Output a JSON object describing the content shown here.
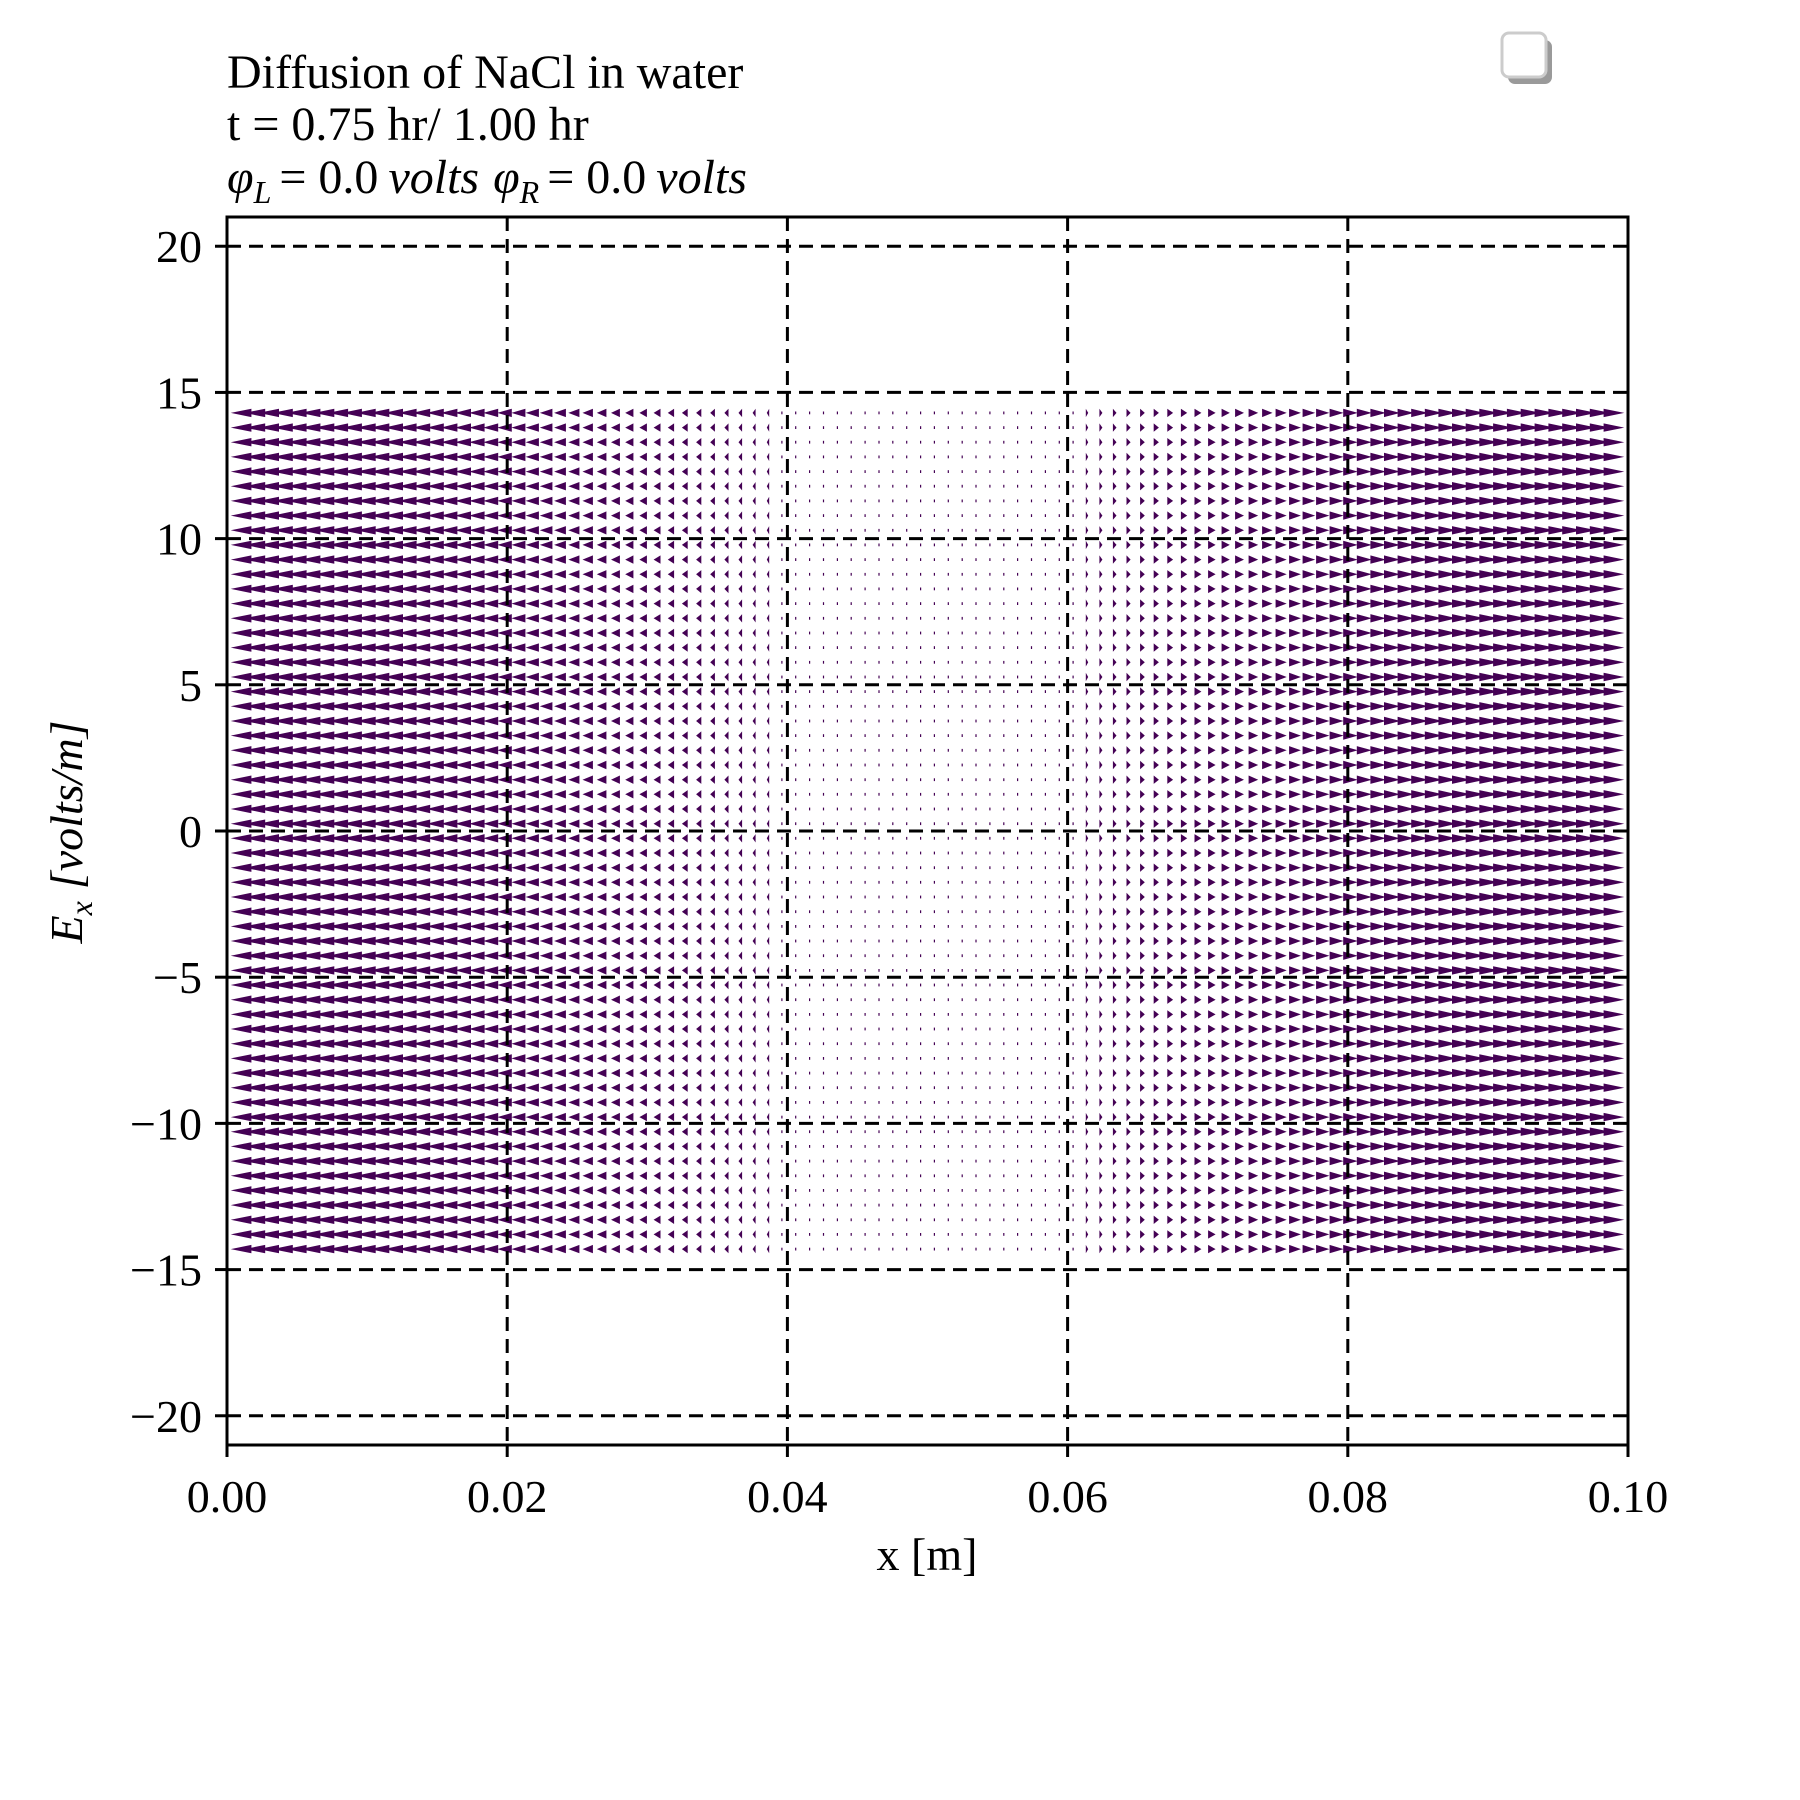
{
  "chart_data": {
    "type": "quiver",
    "title_lines": [
      "Diffusion of NaCl in water",
      "t = 0.75 hr/ 1.00 hr"
    ],
    "potential_line": {
      "left_symbol": "φ",
      "left_sub": "L",
      "left_value": "= 0.0",
      "left_unit": "volts",
      "right_symbol": "φ",
      "right_sub": "R",
      "right_value": "= 0.0",
      "right_unit": "volts"
    },
    "xlabel": "x [m]",
    "ylabel": {
      "symbol": "E",
      "sub": "x",
      "unit": "[volts/m]"
    },
    "xlim": [
      0.0,
      0.1
    ],
    "ylim": [
      -21,
      21
    ],
    "x_ticks": [
      0.0,
      0.02,
      0.04,
      0.06,
      0.08,
      0.1
    ],
    "x_tick_labels": [
      "0.00",
      "0.02",
      "0.04",
      "0.06",
      "0.08",
      "0.10"
    ],
    "y_ticks": [
      20,
      15,
      10,
      5,
      0,
      -5,
      -10,
      -15,
      -20
    ],
    "y_tick_labels": [
      "20",
      "15",
      "10",
      "5",
      "0",
      "−5",
      "−10",
      "−15",
      "−20"
    ],
    "grid": true,
    "grid_style": "dashed",
    "legend": {
      "placement": "upper-right",
      "entries": []
    },
    "arrow_color": "#440154",
    "field_x_range": [
      0.001,
      0.099
    ],
    "field_y_range": [
      -14.3,
      14.3
    ],
    "field_columns": 100,
    "field_rows": 58,
    "field_profile": {
      "description_points_x": [
        0.0,
        0.01,
        0.02,
        0.03,
        0.04,
        0.05,
        0.06,
        0.07,
        0.08,
        0.09,
        0.1
      ],
      "Ex_relative": [
        -1.0,
        -0.95,
        -0.7,
        -0.35,
        -0.08,
        0.0,
        0.08,
        0.35,
        0.7,
        0.95,
        1.0
      ]
    }
  }
}
